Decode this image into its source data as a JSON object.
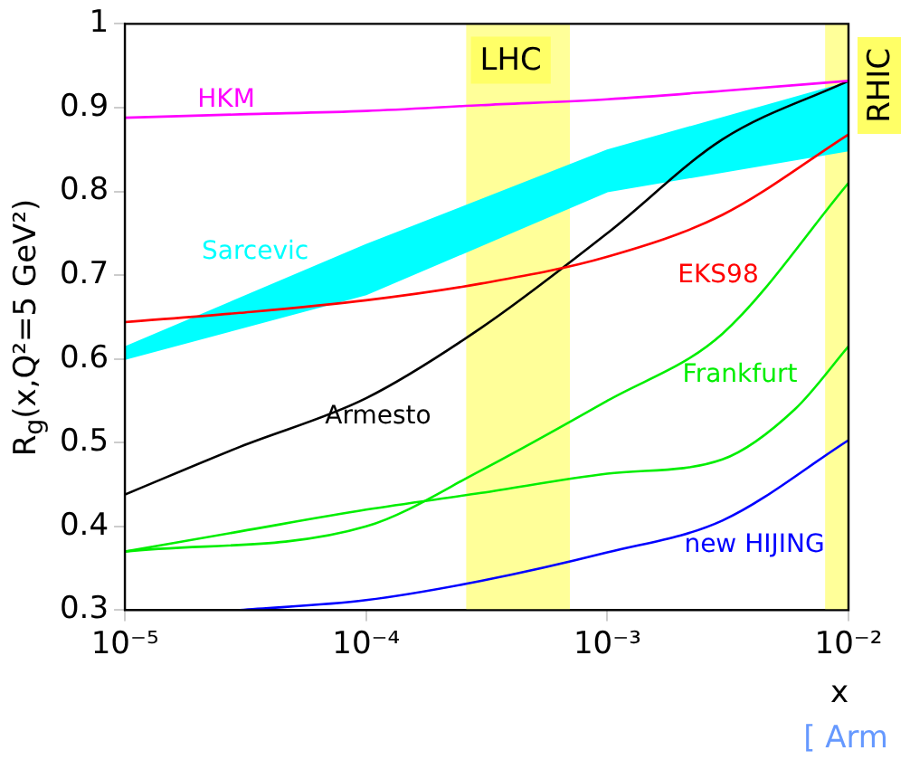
{
  "chart_data": {
    "type": "line",
    "xlabel": "x",
    "ylabel": "R$_{g}$(x,Q²=5 GeV²)",
    "log": "x",
    "xlim": [
      1e-05,
      0.01
    ],
    "xticks": [
      {
        "value": 1e-05,
        "label": "10⁻⁵"
      },
      {
        "value": 0.0001,
        "label": "10⁻⁴"
      },
      {
        "value": 0.001,
        "label": "10⁻³"
      },
      {
        "value": 0.01,
        "label": "10⁻²"
      }
    ],
    "ylim": [
      0.3,
      1
    ],
    "yticks": [
      0.3,
      0.4,
      0.5,
      0.6,
      0.7,
      0.8,
      0.9,
      1
    ],
    "x": [
      1e-05,
      3e-05,
      0.0001,
      0.0003,
      0.001,
      0.003,
      0.01
    ],
    "series": [
      {
        "name": "HKM",
        "color": "#ff00ff",
        "values": [
          0.888,
          0.892,
          0.896,
          0.903,
          0.91,
          0.92,
          0.932
        ]
      },
      {
        "name": "Sarcevic",
        "color": "#00ffff",
        "x": [
          1e-05,
          0.0001,
          0.001,
          0.01
        ],
        "lower": [
          0.6,
          0.677,
          0.8,
          0.849
        ],
        "upper": [
          0.614,
          0.736,
          0.849,
          0.93
        ],
        "values": [
          null,
          null,
          null,
          null
        ]
      },
      {
        "name": "EKS98",
        "color": "#ff0000",
        "values": [
          0.644,
          0.655,
          0.67,
          0.69,
          0.722,
          0.772,
          0.868
        ]
      },
      {
        "name": "Armesto",
        "color": "#000000",
        "values": [
          0.438,
          0.495,
          0.553,
          0.637,
          0.75,
          0.862,
          0.932
        ]
      },
      {
        "name": "Frankfurt",
        "color": "#00ee00",
        "x": [
          1e-05,
          0.0001,
          0.0003,
          0.001,
          0.003,
          0.01
        ],
        "values": [
          0.37,
          0.4,
          0.467,
          0.55,
          0.63,
          0.81
        ]
      },
      {
        "color": "#00ee00",
        "x": [
          1e-05,
          3e-05,
          0.0001,
          0.0003,
          0.001,
          0.003,
          0.006,
          0.01
        ],
        "values": [
          0.37,
          0.394,
          0.42,
          0.44,
          0.463,
          0.48,
          0.54,
          0.615
        ]
      },
      {
        "name": "new HIJING",
        "color": "#0000ff",
        "x": [
          3e-05,
          0.0001,
          0.0003,
          0.001,
          0.003,
          0.01
        ],
        "values": [
          0.3,
          0.312,
          0.335,
          0.369,
          0.407,
          0.503
        ]
      }
    ],
    "bands": [
      {
        "axis": "x",
        "from": 0.00026,
        "to": 0.0007,
        "label": "LHC",
        "color": "#ffff99"
      },
      {
        "axis": "x",
        "from": 0.008,
        "to": 0.01,
        "label": "RHIC",
        "color": "#ffff99"
      }
    ],
    "annotations": [
      "[ Arm"
    ],
    "grid": false,
    "legend": false,
    "marker": "none",
    "line_style": "solid"
  }
}
